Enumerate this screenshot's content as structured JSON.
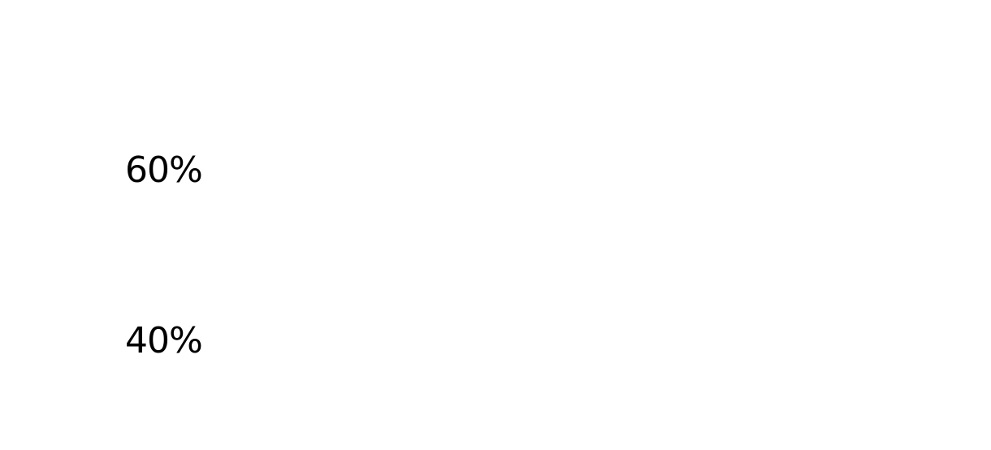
{
  "chart_data": {
    "type": "bar",
    "title": "",
    "xlabel": "",
    "ylabel": "",
    "y_ticks": [
      {
        "value": 60,
        "label": "60%"
      },
      {
        "value": 40,
        "label": "40%"
      }
    ],
    "ylim": [
      40,
      60
    ],
    "grid": false,
    "text_color": "#000000",
    "background_color": "#ffffff"
  }
}
